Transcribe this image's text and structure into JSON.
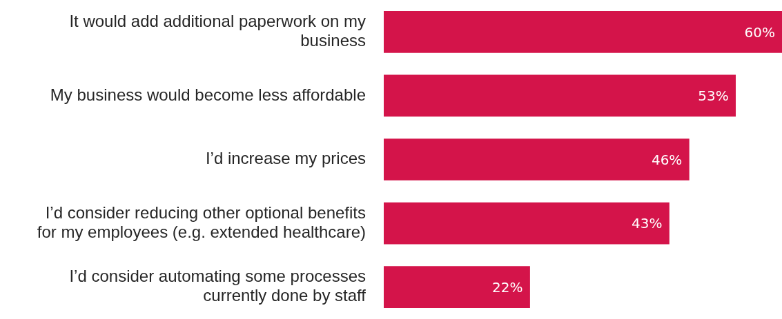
{
  "chart_data": {
    "type": "bar",
    "orientation": "horizontal",
    "categories": [
      "It would add additional paperwork on my business",
      "My business would become less affordable",
      "I’d increase my prices",
      "I’d consider reducing other optional benefits for my employees (e.g. extended healthcare)",
      "I’d consider automating some processes currently done by staff"
    ],
    "values": [
      60,
      53,
      46,
      43,
      22
    ],
    "value_labels": [
      "60%",
      "53%",
      "46%",
      "43%",
      "22%"
    ],
    "color": "#d4144a"
  }
}
